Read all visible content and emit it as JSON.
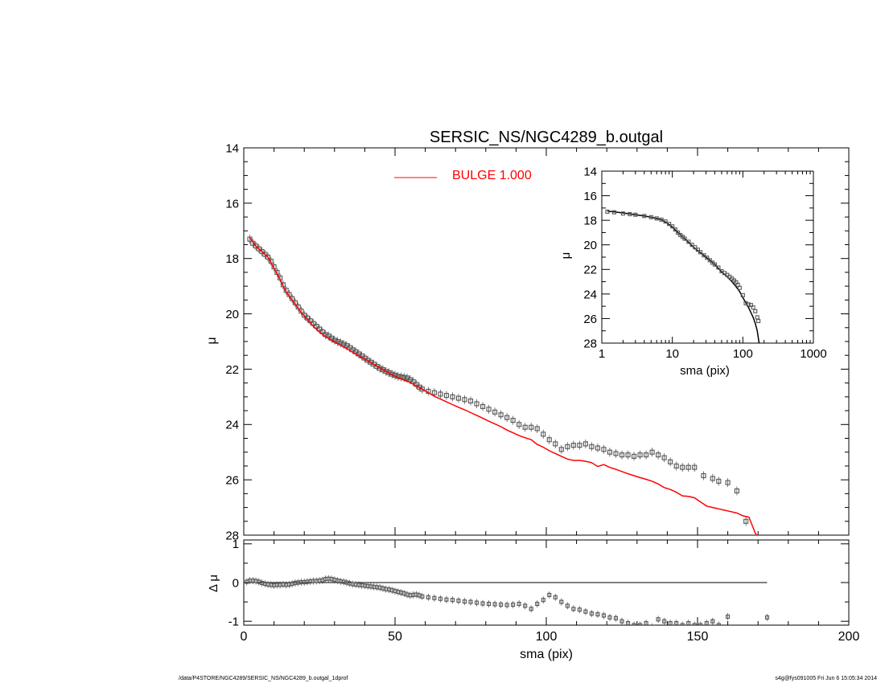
{
  "chart_data": [
    {
      "type": "scatter",
      "panel": "main",
      "title": "SERSIC_NS/NGC4289_b.outgal",
      "xlabel": "",
      "ylabel": "μ",
      "xlim": [
        0,
        200
      ],
      "ylim": [
        28,
        14
      ],
      "y_inverted": true,
      "yticks": [
        14,
        16,
        18,
        20,
        22,
        24,
        26,
        28
      ],
      "legend": {
        "placement": "top-center",
        "label": "BULGE  1.000",
        "color": "#ff0000"
      },
      "series": [
        {
          "name": "",
          "style": "open-squares-with-errorbars",
          "color": "#555555",
          "x": [
            2,
            3,
            4,
            5,
            6,
            7,
            8,
            9,
            10,
            11,
            12,
            13,
            14,
            15,
            16,
            17,
            18,
            19,
            20,
            21,
            22,
            23,
            24,
            25,
            26,
            27,
            28,
            29,
            30,
            31,
            32,
            33,
            34,
            35,
            36,
            37,
            38,
            39,
            40,
            41,
            42,
            43,
            44,
            45,
            46,
            47,
            48,
            49,
            50,
            51,
            52,
            53,
            54,
            55,
            56,
            57,
            58,
            59,
            61,
            63,
            65,
            67,
            69,
            71,
            73,
            75,
            77,
            79,
            81,
            83,
            85,
            87,
            89,
            91,
            93,
            95,
            97,
            99,
            101,
            103,
            105,
            107,
            109,
            111,
            113,
            115,
            117,
            119,
            121,
            123,
            125,
            127,
            129,
            131,
            133,
            135,
            137,
            139,
            141,
            143,
            145,
            147,
            149,
            152,
            155,
            157,
            160,
            163,
            166
          ],
          "y": [
            17.3,
            17.45,
            17.55,
            17.65,
            17.75,
            17.85,
            17.95,
            18.1,
            18.3,
            18.5,
            18.7,
            18.95,
            19.15,
            19.3,
            19.45,
            19.6,
            19.75,
            19.9,
            20.05,
            20.15,
            20.25,
            20.35,
            20.45,
            20.55,
            20.65,
            20.75,
            20.8,
            20.88,
            20.95,
            21.0,
            21.05,
            21.1,
            21.15,
            21.22,
            21.3,
            21.37,
            21.45,
            21.52,
            21.6,
            21.68,
            21.75,
            21.82,
            21.9,
            21.97,
            22.02,
            22.08,
            22.13,
            22.18,
            22.22,
            22.26,
            22.28,
            22.3,
            22.32,
            22.38,
            22.45,
            22.55,
            22.65,
            22.72,
            22.8,
            22.85,
            22.9,
            22.95,
            23.0,
            23.05,
            23.1,
            23.15,
            23.25,
            23.35,
            23.45,
            23.55,
            23.65,
            23.75,
            23.85,
            24.0,
            24.1,
            24.1,
            24.15,
            24.35,
            24.55,
            24.7,
            24.9,
            24.8,
            24.75,
            24.75,
            24.7,
            24.8,
            24.85,
            24.9,
            25.0,
            25.05,
            25.1,
            25.1,
            25.15,
            25.1,
            25.1,
            25.0,
            25.1,
            25.2,
            25.35,
            25.5,
            25.55,
            25.55,
            25.55,
            25.85,
            25.95,
            26.05,
            26.1,
            26.4,
            27.5
          ]
        },
        {
          "name": "BULGE  1.000",
          "style": "line",
          "color": "#ff0000",
          "x": [
            2,
            3,
            4,
            5,
            6,
            7,
            8,
            9,
            10,
            11,
            12,
            13,
            14,
            15,
            17,
            19,
            21,
            23,
            25,
            27,
            29,
            31,
            33,
            35,
            37,
            39,
            41,
            43,
            45,
            47,
            49,
            51,
            53,
            55,
            57,
            59,
            61,
            63,
            65,
            67,
            69,
            71,
            73,
            75,
            77,
            79,
            81,
            83,
            85,
            87,
            89,
            91,
            93,
            95,
            97,
            99,
            101,
            103,
            105,
            107,
            109,
            111,
            113,
            115,
            117,
            119,
            121,
            123,
            125,
            127,
            129,
            131,
            133,
            135,
            137,
            139,
            141,
            143,
            145,
            147,
            149,
            151,
            153,
            155,
            157,
            159,
            161,
            163,
            165,
            167,
            169,
            170
          ],
          "y": [
            17.25,
            17.4,
            17.55,
            17.65,
            17.75,
            17.85,
            17.95,
            18.15,
            18.35,
            18.55,
            18.75,
            19.0,
            19.2,
            19.35,
            19.65,
            19.95,
            20.2,
            20.45,
            20.65,
            20.82,
            20.95,
            21.07,
            21.2,
            21.32,
            21.45,
            21.58,
            21.7,
            21.83,
            21.95,
            22.08,
            22.2,
            22.3,
            22.4,
            22.48,
            22.6,
            22.72,
            22.85,
            22.98,
            23.08,
            23.18,
            23.28,
            23.38,
            23.47,
            23.57,
            23.67,
            23.77,
            23.88,
            23.98,
            24.08,
            24.2,
            24.3,
            24.4,
            24.48,
            24.55,
            24.72,
            24.82,
            24.95,
            25.05,
            25.15,
            25.25,
            25.3,
            25.3,
            25.33,
            25.38,
            25.52,
            25.45,
            25.55,
            25.62,
            25.7,
            25.78,
            25.85,
            25.92,
            25.98,
            26.05,
            26.15,
            26.28,
            26.35,
            26.45,
            26.58,
            26.6,
            26.65,
            26.8,
            26.95,
            27.0,
            27.05,
            27.1,
            27.15,
            27.2,
            27.3,
            27.35,
            27.9,
            28.1
          ]
        }
      ]
    },
    {
      "type": "scatter",
      "panel": "residual",
      "xlabel": "sma (pix)",
      "ylabel": "Δ μ",
      "xlim": [
        0,
        200
      ],
      "ylim": [
        -1.1,
        1.1
      ],
      "yticks": [
        -1,
        0,
        1
      ],
      "xticks": [
        0,
        50,
        100,
        150,
        200
      ],
      "reference_line": {
        "y": 0,
        "x_from": 0,
        "x_to": 173
      },
      "series": [
        {
          "name": "",
          "style": "open-squares-with-errorbars",
          "color": "#555555",
          "x": [
            1,
            2,
            3,
            4,
            5,
            6,
            7,
            8,
            9,
            10,
            11,
            12,
            13,
            14,
            15,
            16,
            17,
            18,
            19,
            20,
            21,
            22,
            23,
            24,
            25,
            26,
            27,
            28,
            29,
            30,
            31,
            32,
            33,
            34,
            35,
            36,
            37,
            38,
            39,
            40,
            41,
            42,
            43,
            44,
            45,
            46,
            47,
            48,
            49,
            50,
            51,
            52,
            53,
            54,
            55,
            56,
            57,
            58,
            59,
            61,
            63,
            65,
            67,
            69,
            71,
            73,
            75,
            77,
            79,
            81,
            83,
            85,
            87,
            89,
            91,
            93,
            95,
            97,
            99,
            101,
            103,
            105,
            107,
            109,
            111,
            113,
            115,
            117,
            119,
            121,
            123,
            125,
            127,
            129,
            131,
            133,
            135,
            137,
            139,
            141,
            143,
            145,
            147,
            149,
            151,
            153,
            155,
            157,
            160,
            173
          ],
          "y": [
            0.02,
            0.05,
            0.05,
            0.04,
            0.02,
            -0.01,
            -0.03,
            -0.05,
            -0.06,
            -0.07,
            -0.06,
            -0.06,
            -0.05,
            -0.06,
            -0.05,
            -0.03,
            -0.01,
            0.0,
            0.01,
            0.01,
            0.02,
            0.03,
            0.04,
            0.04,
            0.05,
            0.06,
            0.09,
            0.1,
            0.09,
            0.07,
            0.05,
            0.03,
            0.02,
            0.0,
            -0.02,
            -0.04,
            -0.05,
            -0.06,
            -0.07,
            -0.08,
            -0.09,
            -0.1,
            -0.11,
            -0.12,
            -0.13,
            -0.15,
            -0.17,
            -0.18,
            -0.2,
            -0.22,
            -0.24,
            -0.26,
            -0.28,
            -0.31,
            -0.33,
            -0.32,
            -0.31,
            -0.33,
            -0.36,
            -0.38,
            -0.4,
            -0.42,
            -0.44,
            -0.45,
            -0.47,
            -0.49,
            -0.5,
            -0.52,
            -0.54,
            -0.55,
            -0.56,
            -0.57,
            -0.58,
            -0.57,
            -0.55,
            -0.6,
            -0.68,
            -0.55,
            -0.45,
            -0.32,
            -0.38,
            -0.5,
            -0.6,
            -0.68,
            -0.7,
            -0.75,
            -0.8,
            -0.82,
            -0.85,
            -0.9,
            -0.92,
            -1.0,
            -1.05,
            -1.1,
            -1.1,
            -1.05,
            -1.15,
            -0.95,
            -1.0,
            -1.05,
            -1.05,
            -1.1,
            -1.05,
            -1.1,
            -1.1,
            -1.05,
            -1.0,
            -1.1,
            -0.88,
            -0.9
          ]
        }
      ]
    },
    {
      "type": "scatter",
      "panel": "inset",
      "xlabel": "sma (pix)",
      "ylabel": "μ",
      "x_scale": "log",
      "xlim": [
        1,
        1000
      ],
      "xticks": [
        1,
        10,
        100,
        1000
      ],
      "ylim": [
        28,
        14
      ],
      "y_inverted": true,
      "yticks": [
        14,
        16,
        18,
        20,
        22,
        24,
        26,
        28
      ],
      "series": [
        {
          "name": "",
          "style": "open-squares",
          "color": "#555555",
          "x": [
            1.2,
            1.5,
            2,
            2.5,
            3,
            4,
            5,
            6,
            7,
            8,
            9,
            10,
            11,
            12,
            13,
            14,
            15,
            17,
            19,
            21,
            23,
            25,
            28,
            31,
            34,
            37,
            40,
            45,
            50,
            55,
            60,
            65,
            70,
            75,
            80,
            85,
            90,
            100,
            110,
            120,
            130,
            140,
            150,
            160,
            166
          ],
          "y": [
            17.3,
            17.35,
            17.45,
            17.5,
            17.55,
            17.65,
            17.75,
            17.85,
            17.95,
            18.1,
            18.3,
            18.5,
            18.75,
            19.0,
            19.2,
            19.35,
            19.5,
            19.75,
            20.0,
            20.2,
            20.4,
            20.6,
            20.85,
            21.05,
            21.25,
            21.45,
            21.6,
            21.85,
            22.15,
            22.3,
            22.45,
            22.6,
            22.75,
            22.9,
            23.05,
            23.25,
            23.5,
            24.1,
            24.75,
            24.85,
            24.9,
            25.1,
            25.4,
            25.9,
            26.2
          ]
        },
        {
          "name": "",
          "style": "line",
          "color": "#000000",
          "x": [
            1.2,
            2,
            3,
            4,
            5,
            6,
            7,
            8,
            9,
            10,
            12,
            14,
            17,
            20,
            25,
            30,
            40,
            50,
            60,
            70,
            80,
            90,
            100,
            110,
            120,
            130,
            140,
            150,
            160,
            170
          ],
          "y": [
            17.25,
            17.4,
            17.55,
            17.65,
            17.75,
            17.85,
            17.95,
            18.15,
            18.35,
            18.55,
            19.0,
            19.35,
            19.8,
            20.2,
            20.65,
            21.0,
            21.6,
            22.2,
            22.6,
            23.0,
            23.4,
            23.8,
            24.3,
            24.7,
            25.1,
            25.5,
            25.9,
            26.4,
            27.0,
            28.0
          ]
        }
      ]
    }
  ],
  "footer": {
    "left": "/data/P4STORE/NGC4289/SERSIC_NS/NGC4289_b.outgal_1dprof",
    "right": "s4g@fys091005  Fri Jun  6 15:05:34 2014"
  },
  "colors": {
    "model": "#ff0000",
    "points": "#555555",
    "axes": "#000000"
  }
}
